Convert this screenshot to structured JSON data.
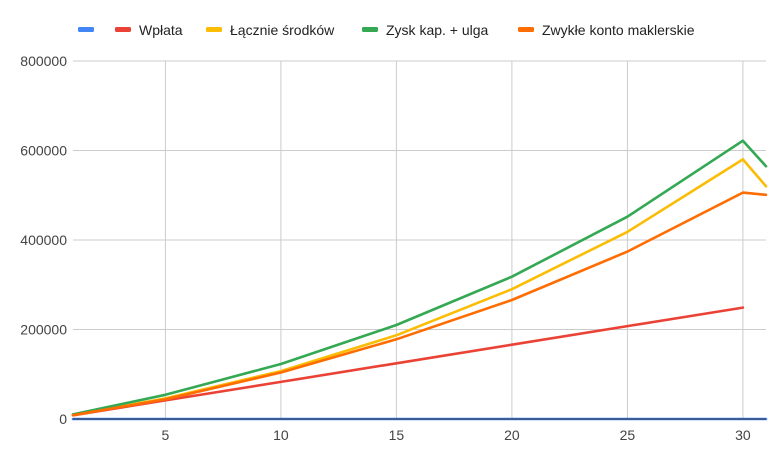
{
  "chart_data": {
    "type": "line",
    "title": "",
    "xlabel": "",
    "ylabel": "",
    "xlim": [
      1,
      31
    ],
    "ylim": [
      0,
      800000
    ],
    "x_ticks": [
      5,
      10,
      15,
      20,
      25,
      30
    ],
    "x_tick_labels": [
      "5",
      "10",
      "15",
      "20",
      "25",
      "30"
    ],
    "y_ticks": [
      0,
      200000,
      400000,
      600000,
      800000
    ],
    "y_tick_labels": [
      "0",
      "200000",
      "400000",
      "600000",
      "800000"
    ],
    "grid": true,
    "legend_position": "top-left",
    "series": [
      {
        "name": "",
        "color": "#4285f4",
        "x": [
          1,
          31
        ],
        "values": [
          0,
          0
        ]
      },
      {
        "name": "Wpłata",
        "color": "#ea4335",
        "x": [
          1,
          5,
          10,
          15,
          20,
          25,
          30
        ],
        "values": [
          8300,
          41500,
          83000,
          124500,
          166000,
          207500,
          249000
        ]
      },
      {
        "name": "Łącznie środków",
        "color": "#fbbc04",
        "x": [
          1,
          5,
          10,
          15,
          20,
          25,
          30,
          31
        ],
        "values": [
          8700,
          46000,
          107000,
          187000,
          290000,
          418000,
          580000,
          520000
        ]
      },
      {
        "name": "Zysk kap. + ulga",
        "color": "#34a853",
        "x": [
          1,
          5,
          10,
          15,
          20,
          25,
          30,
          31
        ],
        "values": [
          10300,
          54000,
          123000,
          210000,
          318000,
          452000,
          622000,
          565000
        ]
      },
      {
        "name": "Zwykłe konto maklerskie",
        "color": "#ff6d01",
        "x": [
          1,
          5,
          10,
          15,
          20,
          25,
          30,
          31
        ],
        "values": [
          8400,
          44000,
          104000,
          178000,
          266000,
          374000,
          506000,
          501000
        ]
      }
    ]
  }
}
